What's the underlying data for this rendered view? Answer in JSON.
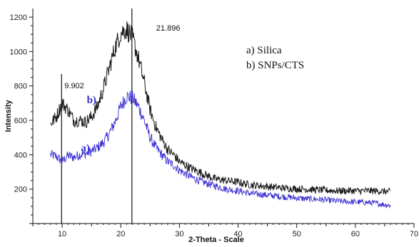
{
  "chart_data": {
    "type": "line",
    "xlabel": "2-Theta - Scale",
    "ylabel": "Intensity",
    "xlim": [
      5,
      70
    ],
    "ylim": [
      0,
      1250
    ],
    "xticks": [
      10,
      20,
      30,
      40,
      50,
      60,
      70
    ],
    "yticks": [
      200,
      400,
      600,
      800,
      1000,
      1200
    ],
    "grid": false,
    "legend": {
      "placement": "top-right",
      "entries": [
        "a) Silica",
        "b) SNPs/CTS"
      ]
    },
    "peak_markers": [
      {
        "x": 9.902,
        "label": "9.902"
      },
      {
        "x": 21.896,
        "label": "21.896"
      }
    ],
    "series": [
      {
        "name": "a) Silica",
        "curve_label": "a)",
        "color": "#3a2fd0",
        "x": [
          8,
          9,
          10,
          11,
          12,
          13,
          14,
          15,
          16,
          17,
          18,
          19,
          20,
          21,
          22,
          23,
          24,
          25,
          26,
          27,
          28,
          29,
          30,
          32,
          34,
          36,
          38,
          40,
          42,
          45,
          48,
          51,
          54,
          57,
          60,
          63,
          66
        ],
        "y": [
          400,
          390,
          360,
          395,
          385,
          400,
          405,
          420,
          440,
          470,
          520,
          590,
          680,
          740,
          730,
          680,
          600,
          500,
          440,
          400,
          360,
          340,
          310,
          270,
          240,
          220,
          200,
          190,
          175,
          165,
          155,
          145,
          140,
          130,
          125,
          120,
          105
        ]
      },
      {
        "name": "b) SNPs/CTS",
        "curve_label": "b)",
        "color": "#1a1a1a",
        "x": [
          8,
          9,
          10,
          11,
          12,
          13,
          14,
          15,
          16,
          17,
          18,
          19,
          20,
          21,
          22,
          23,
          24,
          25,
          26,
          27,
          28,
          29,
          30,
          32,
          34,
          36,
          38,
          40,
          42,
          45,
          48,
          51,
          54,
          57,
          60,
          63,
          66
        ],
        "y": [
          580,
          620,
          700,
          660,
          600,
          600,
          590,
          620,
          680,
          780,
          900,
          1020,
          1110,
          1130,
          1080,
          960,
          820,
          660,
          560,
          490,
          430,
          400,
          360,
          320,
          290,
          260,
          250,
          240,
          225,
          215,
          205,
          200,
          195,
          190,
          190,
          190,
          185
        ]
      }
    ]
  }
}
